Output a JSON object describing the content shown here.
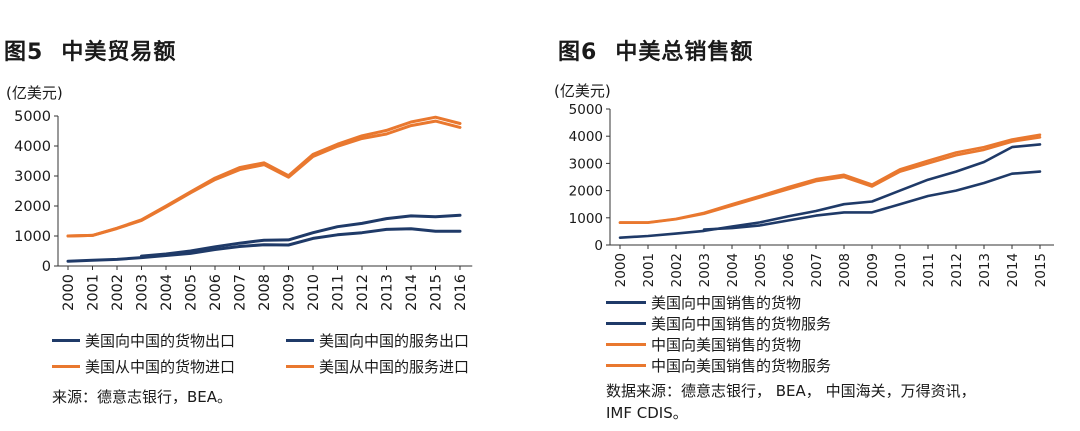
{
  "left": {
    "title_num": "图5",
    "title_text": "中美贸易额",
    "unit": "(亿美元)",
    "source": "来源：德意志银行，BEA。"
  },
  "right": {
    "title_num": "图6",
    "title_text": "中美总销售额",
    "unit": "(亿美元)",
    "source_line1": "数据来源：德意志银行， BEA， 中国海关，万得资讯，",
    "source_line2": "IMF CDIS。"
  },
  "colors": {
    "navy": "#1f3a68",
    "orange": "#e9782f"
  },
  "chart_data": [
    {
      "type": "line",
      "title": "中美贸易额",
      "ylabel": "(亿美元)",
      "ylim": [
        0,
        5000
      ],
      "yticks": [
        0,
        1000,
        2000,
        3000,
        4000,
        5000
      ],
      "categories": [
        "2000",
        "2001",
        "2002",
        "2003",
        "2004",
        "2005",
        "2006",
        "2007",
        "2008",
        "2009",
        "2010",
        "2011",
        "2012",
        "2013",
        "2014",
        "2015",
        "2016"
      ],
      "legend_position": "bottom",
      "grid": false,
      "series": [
        {
          "name": "美国向中国的货物出口",
          "color": "#1f3a68",
          "values": [
            160,
            190,
            220,
            280,
            350,
            420,
            550,
            650,
            710,
            700,
            920,
            1040,
            1110,
            1220,
            1240,
            1160,
            1160
          ]
        },
        {
          "name": "美国向中国的服务出口",
          "color": "#1f3a68",
          "values": [
            null,
            null,
            null,
            330,
            400,
            500,
            640,
            760,
            860,
            870,
            1110,
            1310,
            1420,
            1580,
            1670,
            1640,
            1690
          ]
        },
        {
          "name": "美国从中国的货物进口",
          "color": "#e9782f",
          "values": [
            1000,
            1020,
            1250,
            1520,
            1970,
            2440,
            2880,
            3210,
            3380,
            2960,
            3650,
            3990,
            4250,
            4400,
            4680,
            4830,
            4620
          ]
        },
        {
          "name": "美国从中国的服务进口",
          "color": "#e9782f",
          "values": [
            1000,
            1020,
            1260,
            1540,
            2000,
            2470,
            2930,
            3280,
            3440,
            3010,
            3720,
            4060,
            4340,
            4520,
            4800,
            4960,
            4750
          ]
        }
      ]
    },
    {
      "type": "line",
      "title": "中美总销售额",
      "ylabel": "(亿美元)",
      "ylim": [
        0,
        5000
      ],
      "yticks": [
        0,
        1000,
        2000,
        3000,
        4000,
        5000
      ],
      "categories": [
        "2000",
        "2001",
        "2002",
        "2003",
        "2004",
        "2005",
        "2006",
        "2007",
        "2008",
        "2009",
        "2010",
        "2011",
        "2012",
        "2013",
        "2014",
        "2015"
      ],
      "legend_position": "bottom",
      "grid": false,
      "series": [
        {
          "name": "美国向中国销售的货物",
          "color": "#1f3a68",
          "values": [
            270,
            330,
            420,
            520,
            680,
            830,
            1050,
            1250,
            1500,
            1600,
            2000,
            2400,
            2700,
            3050,
            3600,
            3700
          ]
        },
        {
          "name": "美国向中国销售的货物服务",
          "color": "#1f3a68",
          "values": [
            null,
            null,
            null,
            570,
            620,
            720,
            900,
            1080,
            1200,
            1200,
            1500,
            1800,
            2000,
            2280,
            2620,
            2700
          ]
        },
        {
          "name": "中国向美国销售的货物",
          "color": "#e9782f",
          "values": [
            820,
            820,
            950,
            1150,
            1450,
            1750,
            2050,
            2350,
            2500,
            2150,
            2700,
            3000,
            3300,
            3500,
            3800,
            3960
          ]
        },
        {
          "name": "中国向美国销售的货物服务",
          "color": "#e9782f",
          "values": [
            830,
            830,
            960,
            1180,
            1500,
            1800,
            2120,
            2420,
            2580,
            2220,
            2780,
            3100,
            3400,
            3600,
            3880,
            4050
          ]
        }
      ]
    }
  ]
}
